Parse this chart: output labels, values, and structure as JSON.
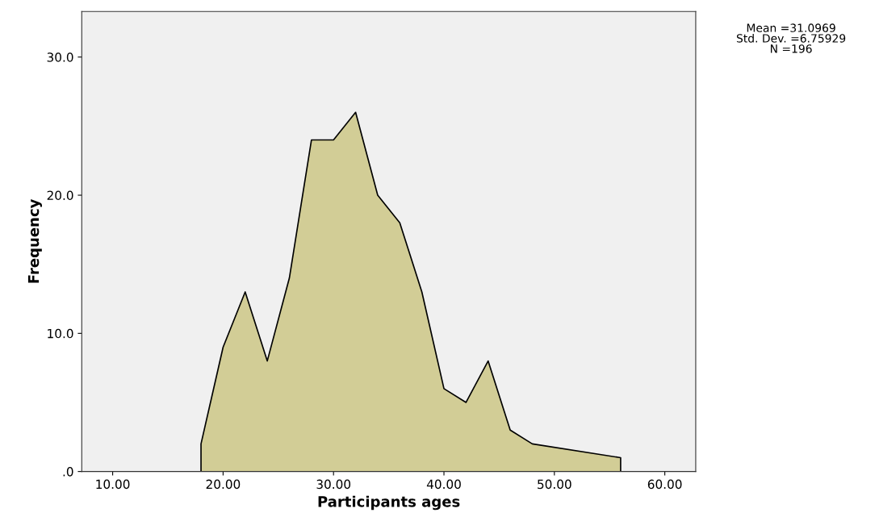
{
  "chart_data": {
    "type": "area",
    "xlabel": "Participants ages",
    "ylabel": "Frequency",
    "annotations": [
      "Mean =31.0969\nStd. Dev. =6.75929\nN =196"
    ],
    "series": [
      {
        "color": "#d2cd96",
        "x": [
          18,
          18,
          20,
          22,
          24,
          26,
          28,
          30,
          32,
          34,
          36,
          38,
          40,
          42,
          44,
          46,
          48,
          56,
          56
        ],
        "values": [
          0,
          2,
          9,
          13,
          8,
          14,
          24,
          24,
          26,
          20,
          18,
          13,
          6,
          5,
          8,
          3,
          2,
          1,
          0
        ]
      }
    ],
    "xlim": [
      7.2,
      62.8
    ],
    "ylim": [
      0,
      33.3
    ],
    "xticks": [
      {
        "value": 10,
        "label": "10.00"
      },
      {
        "value": 20,
        "label": "20.00"
      },
      {
        "value": 30,
        "label": "30.00"
      },
      {
        "value": 40,
        "label": "40.00"
      },
      {
        "value": 50,
        "label": "50.00"
      },
      {
        "value": 60,
        "label": "60.00"
      }
    ],
    "yticks": [
      {
        "value": 0,
        "label": ".0"
      },
      {
        "value": 10,
        "label": "10.0"
      },
      {
        "value": 20,
        "label": "20.0"
      },
      {
        "value": 30,
        "label": "30.0"
      }
    ],
    "grid": false,
    "legend": false
  }
}
